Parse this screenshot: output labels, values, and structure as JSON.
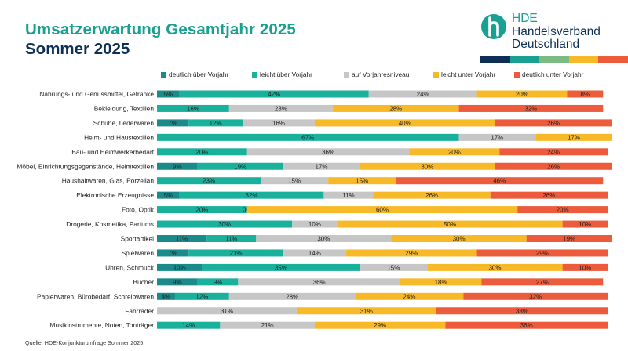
{
  "header": {
    "title_line1": "Umsatzerwartung Gesamtjahr 2025",
    "title_line2": "Sommer 2025"
  },
  "logo": {
    "line1": "HDE",
    "line2": "Handelsverband",
    "line3": "Deutschland",
    "icon": "hde-logo-icon",
    "brand_color": "#1aa090",
    "stripe_colors": [
      "#0e2f55",
      "#1aa090",
      "#7cba84",
      "#f7b928",
      "#ec5c3c"
    ]
  },
  "source": "Quelle: HDE-Konjunkturumfrage Sommer 2025",
  "chart_data": {
    "type": "bar",
    "orientation": "horizontal",
    "stacked": "100%",
    "legend_position": "top",
    "grid": false,
    "xlim": [
      0,
      100
    ],
    "categories": [
      "Nahrungs- und Genussmittel, Getränke",
      "Bekleidung, Textilien",
      "Schuhe, Lederwaren",
      "Heim- und Haustextilien",
      "Bau- und Heimwerkerbedarf",
      "Möbel, Einrichtungsgegenstände, Heimtextilien",
      "Haushaltwaren, Glas, Porzellan",
      "Elektronische Erzeugnisse",
      "Foto, Optik",
      "Drogerie, Kosmetika, Parfums",
      "Sportartikel",
      "Spielwaren",
      "Uhren, Schmuck",
      "Bücher",
      "Papierwaren, Bürobedarf, Schreibwaren",
      "Fahrräder",
      "Musikinstrumente, Noten, Tonträger"
    ],
    "series": [
      {
        "name": "deutlich über Vorjahr",
        "color": "#1b8a8a",
        "values": [
          5,
          0,
          7,
          0,
          0,
          9,
          0,
          5,
          0,
          0,
          11,
          7,
          10,
          9,
          4,
          0,
          0
        ],
        "labels": [
          "5%",
          "",
          "7%",
          "",
          "",
          "9%",
          "",
          "5%",
          "",
          "",
          "11%",
          "7%",
          "10%",
          "9%",
          "4%",
          "",
          ""
        ]
      },
      {
        "name": "leicht über Vorjahr",
        "color": "#19b09c",
        "values": [
          42,
          16,
          12,
          67,
          20,
          19,
          23,
          32,
          20,
          30,
          11,
          21,
          35,
          9,
          12,
          0,
          14
        ],
        "labels": [
          "42%",
          "16%",
          "12%",
          "67%",
          "20%",
          "19%",
          "23%",
          "32%",
          "20%",
          "30%",
          "11%",
          "21%",
          "35%",
          "9%",
          "12%",
          "",
          "14%"
        ]
      },
      {
        "name": "auf Vorjahresniveau",
        "color": "#c6c6c6",
        "values": [
          24,
          23,
          16,
          17,
          36,
          17,
          15,
          11,
          0,
          10,
          30,
          14,
          15,
          36,
          28,
          31,
          21
        ],
        "labels": [
          "24%",
          "23%",
          "16%",
          "17%",
          "36%",
          "17%",
          "15%",
          "11%",
          "0%",
          "10%",
          "30%",
          "14%",
          "15%",
          "36%",
          "28%",
          "31%",
          "21%"
        ]
      },
      {
        "name": "leicht unter Vorjahr",
        "color": "#f7b928",
        "values": [
          20,
          28,
          40,
          17,
          20,
          30,
          15,
          26,
          60,
          50,
          30,
          29,
          30,
          18,
          24,
          31,
          29
        ],
        "labels": [
          "20%",
          "28%",
          "40%",
          "17%",
          "20%",
          "30%",
          "15%",
          "26%",
          "60%",
          "50%",
          "30%",
          "29%",
          "30%",
          "18%",
          "24%",
          "31%",
          "29%"
        ]
      },
      {
        "name": "deutlich unter Vorjahr",
        "color": "#ec5c3c",
        "values": [
          8,
          32,
          26,
          0,
          24,
          26,
          46,
          26,
          20,
          10,
          19,
          29,
          10,
          27,
          32,
          38,
          36
        ],
        "labels": [
          "8%",
          "32%",
          "26%",
          "",
          "24%",
          "26%",
          "46%",
          "26%",
          "20%",
          "10%",
          "19%",
          "29%",
          "10%",
          "27%",
          "32%",
          "38%",
          "36%"
        ]
      }
    ]
  }
}
